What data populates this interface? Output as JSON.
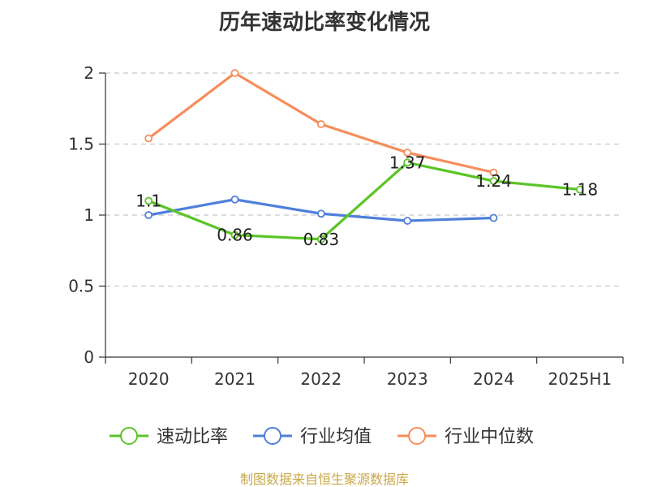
{
  "chart_data": {
    "type": "line",
    "title": "历年速动比率变化情况",
    "categories": [
      "2020",
      "2021",
      "2022",
      "2023",
      "2024",
      "2025H1"
    ],
    "ylim": [
      0,
      2
    ],
    "yticks": [
      "0",
      "0.5",
      "1",
      "1.5",
      "2"
    ],
    "grid": true,
    "legend_position": "bottom",
    "series": [
      {
        "name": "速动比率",
        "color": "#5bc426",
        "values": [
          1.1,
          0.86,
          0.83,
          1.37,
          1.24,
          1.18
        ],
        "labels": [
          "1.1",
          "0.86",
          "0.83",
          "1.37",
          "1.24",
          "1.18"
        ]
      },
      {
        "name": "行业均值",
        "color": "#4f7fdb",
        "values": [
          1.0,
          1.11,
          1.01,
          0.96,
          0.98,
          null
        ]
      },
      {
        "name": "行业中位数",
        "color": "#f68d5a",
        "values": [
          1.54,
          2.0,
          1.64,
          1.44,
          1.3,
          null
        ]
      }
    ],
    "source": "制图数据来自恒生聚源数据库"
  }
}
